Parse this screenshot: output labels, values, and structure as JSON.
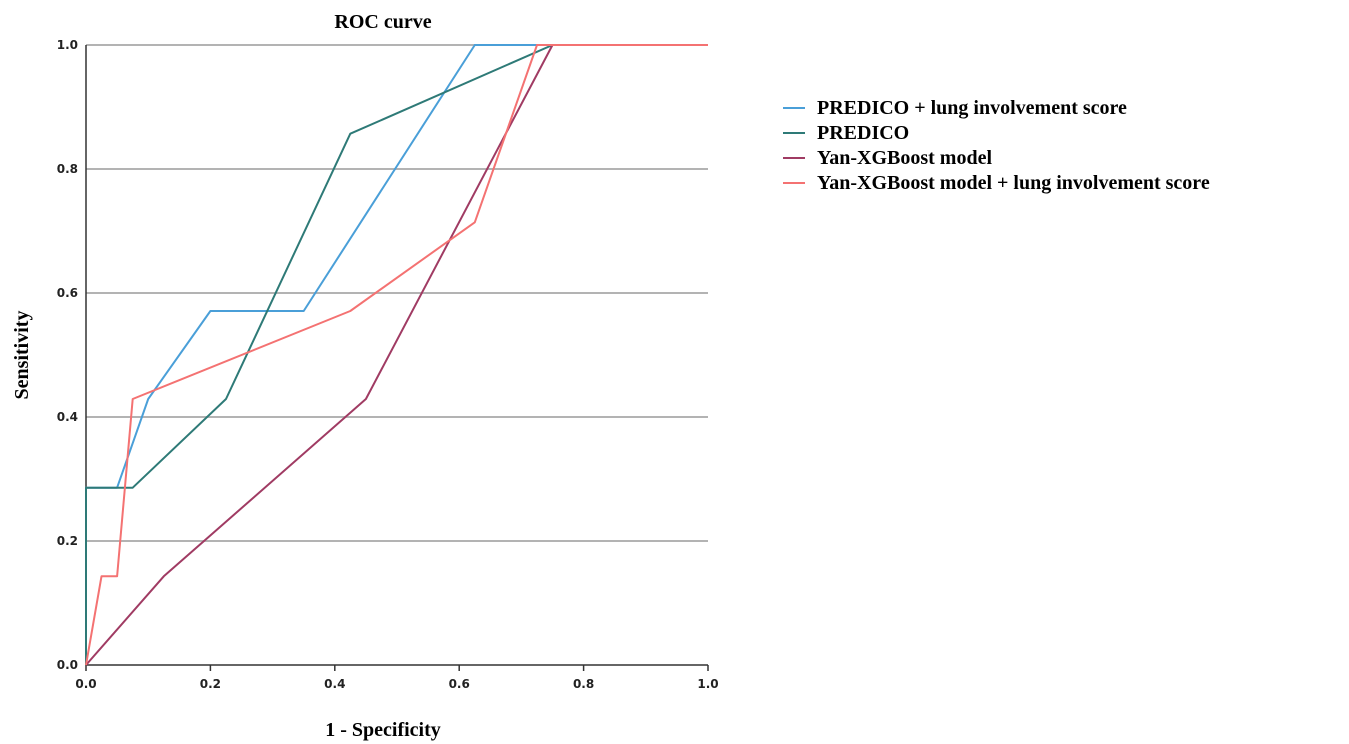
{
  "chart_data": {
    "type": "line",
    "title": "ROC curve",
    "xlabel": "1 - Specificity",
    "ylabel": "Sensitivity",
    "xlim": [
      0,
      1
    ],
    "ylim": [
      0,
      1
    ],
    "xticks": [
      "0.0",
      "0.2",
      "0.4",
      "0.6",
      "0.8",
      "1.0"
    ],
    "yticks": [
      "0.0",
      "0.2",
      "0.4",
      "0.6",
      "0.8",
      "1.0"
    ],
    "grid": "horizontal",
    "legend_position": "right",
    "series": [
      {
        "name": "PREDICO + lung involvement score",
        "color": "#4a9fd8",
        "x": [
          0,
          0,
          0.05,
          0.1,
          0.2,
          0.35,
          0.625,
          1.0
        ],
        "y": [
          0,
          0.286,
          0.286,
          0.429,
          0.571,
          0.571,
          1.0,
          1.0
        ]
      },
      {
        "name": "PREDICO",
        "color": "#2e7a77",
        "x": [
          0,
          0,
          0.075,
          0.225,
          0.425,
          0.75,
          1.0
        ],
        "y": [
          0,
          0.286,
          0.286,
          0.429,
          0.857,
          1.0,
          1.0
        ]
      },
      {
        "name": "Yan-XGBoost model",
        "color": "#a03b63",
        "x": [
          0,
          0.125,
          0.45,
          0.75,
          1.0
        ],
        "y": [
          0,
          0.143,
          0.429,
          1.0,
          1.0
        ]
      },
      {
        "name": "Yan-XGBoost model + lung involvement score",
        "color": "#f47272",
        "x": [
          0,
          0.025,
          0.05,
          0.075,
          0.425,
          0.625,
          0.725,
          1.0
        ],
        "y": [
          0,
          0.143,
          0.143,
          0.429,
          0.571,
          0.714,
          1.0,
          1.0
        ]
      }
    ]
  }
}
